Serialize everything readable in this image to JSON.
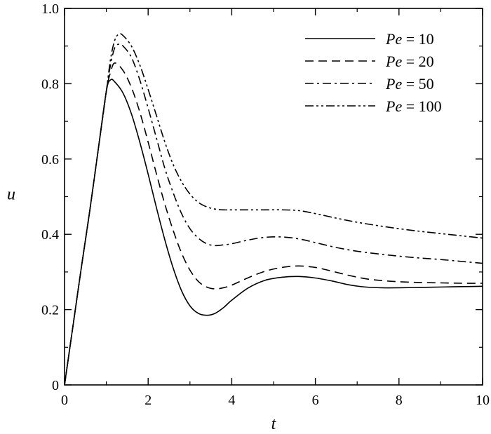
{
  "chart_data": {
    "type": "line",
    "title": "",
    "xlabel": "t",
    "ylabel": "u",
    "xlim": [
      0,
      10
    ],
    "ylim": [
      0,
      1.0
    ],
    "xticks": [
      0,
      2,
      4,
      6,
      8,
      10
    ],
    "xtick_labels": [
      "0",
      "2",
      "4",
      "6",
      "8",
      "10"
    ],
    "yticks": [
      0,
      0.2,
      0.4,
      0.6,
      0.8,
      1.0
    ],
    "ytick_labels": [
      "0",
      "0.2",
      "0.4",
      "0.6",
      "0.8",
      "1.0"
    ],
    "grid": false,
    "legend_position": "top-right",
    "series": [
      {
        "legend_var": "Pe",
        "legend_rest": " = 10",
        "dash": "solid",
        "x": [
          0,
          0.2,
          0.4,
          0.6,
          0.8,
          1.0,
          1.1,
          1.2,
          1.4,
          1.6,
          1.8,
          2.0,
          2.2,
          2.4,
          2.6,
          2.8,
          3.0,
          3.2,
          3.4,
          3.6,
          3.8,
          4.0,
          4.4,
          4.8,
          5.2,
          5.6,
          6.0,
          6.4,
          6.8,
          7.2,
          7.6,
          8.0,
          8.5,
          9.0,
          9.5,
          10.0
        ],
        "y": [
          0,
          0.155,
          0.31,
          0.46,
          0.62,
          0.78,
          0.81,
          0.805,
          0.775,
          0.72,
          0.645,
          0.56,
          0.47,
          0.385,
          0.31,
          0.25,
          0.21,
          0.19,
          0.185,
          0.19,
          0.205,
          0.225,
          0.258,
          0.278,
          0.286,
          0.288,
          0.284,
          0.276,
          0.266,
          0.26,
          0.258,
          0.258,
          0.259,
          0.26,
          0.261,
          0.262
        ]
      },
      {
        "legend_var": "Pe",
        "legend_rest": " = 20",
        "dash": "dash",
        "x": [
          0,
          0.2,
          0.4,
          0.6,
          0.8,
          1.0,
          1.1,
          1.2,
          1.4,
          1.6,
          1.8,
          2.0,
          2.2,
          2.4,
          2.6,
          2.8,
          3.0,
          3.2,
          3.4,
          3.6,
          3.8,
          4.0,
          4.4,
          4.8,
          5.2,
          5.6,
          6.0,
          6.4,
          6.8,
          7.2,
          7.6,
          8.0,
          8.5,
          9.0,
          9.5,
          10.0
        ],
        "y": [
          0,
          0.155,
          0.31,
          0.46,
          0.62,
          0.78,
          0.83,
          0.855,
          0.835,
          0.79,
          0.725,
          0.645,
          0.56,
          0.48,
          0.41,
          0.35,
          0.305,
          0.275,
          0.26,
          0.255,
          0.258,
          0.265,
          0.285,
          0.302,
          0.312,
          0.316,
          0.312,
          0.302,
          0.291,
          0.282,
          0.277,
          0.274,
          0.272,
          0.271,
          0.27,
          0.27
        ]
      },
      {
        "legend_var": "Pe",
        "legend_rest": " = 50",
        "dash": "dashdot",
        "x": [
          0,
          0.2,
          0.4,
          0.6,
          0.8,
          1.0,
          1.1,
          1.2,
          1.3,
          1.4,
          1.6,
          1.8,
          2.0,
          2.2,
          2.4,
          2.6,
          2.8,
          3.0,
          3.2,
          3.4,
          3.6,
          3.8,
          4.0,
          4.4,
          4.8,
          5.2,
          5.6,
          6.0,
          6.5,
          7.0,
          7.5,
          8.0,
          8.5,
          9.0,
          9.5,
          10.0
        ],
        "y": [
          0,
          0.155,
          0.31,
          0.46,
          0.62,
          0.78,
          0.85,
          0.895,
          0.905,
          0.9,
          0.87,
          0.81,
          0.735,
          0.655,
          0.575,
          0.51,
          0.455,
          0.415,
          0.39,
          0.375,
          0.37,
          0.372,
          0.375,
          0.385,
          0.392,
          0.393,
          0.388,
          0.378,
          0.365,
          0.355,
          0.348,
          0.342,
          0.337,
          0.333,
          0.328,
          0.323
        ]
      },
      {
        "legend_var": "Pe",
        "legend_rest": " = 100",
        "dash": "dashdotdot",
        "x": [
          0,
          0.2,
          0.4,
          0.6,
          0.8,
          1.0,
          1.1,
          1.2,
          1.3,
          1.4,
          1.6,
          1.8,
          2.0,
          2.2,
          2.4,
          2.6,
          2.8,
          3.0,
          3.2,
          3.4,
          3.6,
          3.8,
          4.0,
          4.4,
          4.8,
          5.2,
          5.6,
          6.0,
          6.5,
          7.0,
          7.5,
          8.0,
          8.5,
          9.0,
          9.5,
          10.0
        ],
        "y": [
          0,
          0.155,
          0.31,
          0.46,
          0.62,
          0.78,
          0.865,
          0.915,
          0.932,
          0.928,
          0.9,
          0.85,
          0.785,
          0.715,
          0.645,
          0.585,
          0.54,
          0.507,
          0.485,
          0.473,
          0.467,
          0.465,
          0.465,
          0.465,
          0.465,
          0.465,
          0.463,
          0.455,
          0.443,
          0.432,
          0.423,
          0.415,
          0.408,
          0.402,
          0.396,
          0.39
        ]
      }
    ]
  }
}
